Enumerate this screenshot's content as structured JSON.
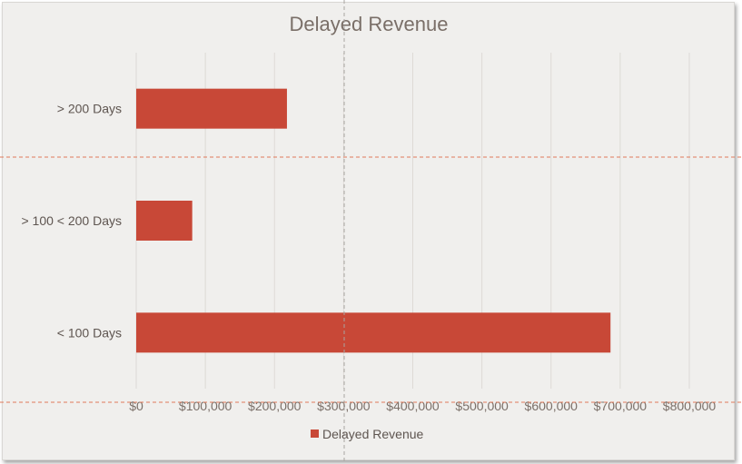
{
  "chart_data": {
    "type": "bar",
    "orientation": "horizontal",
    "title": "Delayed Revenue",
    "categories": [
      "> 200 Days",
      "> 100 < 200 Days",
      "< 100 Days"
    ],
    "series": [
      {
        "name": "Delayed Revenue",
        "values": [
          218000,
          81000,
          686000
        ],
        "color": "#c84837"
      }
    ],
    "xlim": [
      0,
      800000
    ],
    "x_ticks": [
      0,
      100000,
      200000,
      300000,
      400000,
      500000,
      600000,
      700000,
      800000
    ],
    "x_tick_labels": [
      "$0",
      "$100,000",
      "$200,000",
      "$300,000",
      "$400,000",
      "$500,000",
      "$600,000",
      "$700,000",
      "$800,000"
    ],
    "grid": true,
    "legend_position": "bottom"
  },
  "colors": {
    "bar": "#c84837",
    "background": "#f0efed",
    "guide_lines": "#e07a5a"
  }
}
